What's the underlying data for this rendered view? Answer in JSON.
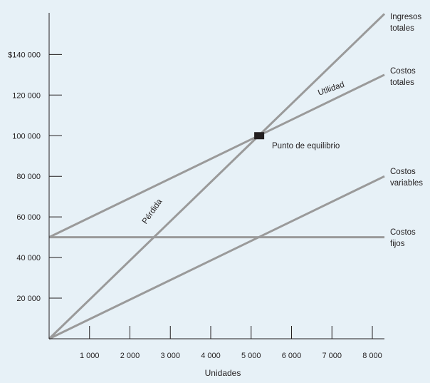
{
  "chart_data": {
    "type": "line",
    "xlabel": "Unidades",
    "ylabel": "",
    "xlim": [
      0,
      8300
    ],
    "ylim": [
      0,
      160000
    ],
    "x_ticks": [
      1000,
      2000,
      3000,
      4000,
      5000,
      6000,
      7000,
      8000
    ],
    "x_tick_labels": [
      "1 000",
      "2 000",
      "3 000",
      "4 000",
      "5 000",
      "6 000",
      "7 000",
      "8 000"
    ],
    "y_ticks": [
      20000,
      40000,
      60000,
      80000,
      100000,
      120000,
      140000
    ],
    "y_tick_labels": [
      "20 000",
      "40 000",
      "60 000",
      "80 000",
      "100 000",
      "120 000",
      "$140 000"
    ],
    "grid": false,
    "colors": {
      "lines": "#9a9a9a",
      "axis": "#231f20",
      "marker": "#231f20",
      "background": "#e7f1f7"
    },
    "series": [
      {
        "name": "Ingresos totales",
        "label_lines": [
          "Ingresos",
          "totales"
        ],
        "x": [
          0,
          8300
        ],
        "y": [
          0,
          160000
        ]
      },
      {
        "name": "Costos totales",
        "label_lines": [
          "Costos",
          "totales"
        ],
        "x": [
          0,
          8300
        ],
        "y": [
          50000,
          130000
        ]
      },
      {
        "name": "Costos variables",
        "label_lines": [
          "Costos",
          "variables"
        ],
        "x": [
          0,
          8300
        ],
        "y": [
          0,
          80000
        ]
      },
      {
        "name": "Costos fijos",
        "label_lines": [
          "Costos",
          "fijos"
        ],
        "x": [
          0,
          8300
        ],
        "y": [
          50000,
          50000
        ]
      }
    ],
    "break_even": {
      "label": "Punto de equilibrio",
      "x": 5200,
      "y": 100000
    },
    "region_labels": [
      {
        "text": "Utilidad",
        "x": 7000,
        "y": 122000,
        "angle": -19
      },
      {
        "text": "Pérdida",
        "x": 2600,
        "y": 62000,
        "angle": -55
      }
    ]
  }
}
